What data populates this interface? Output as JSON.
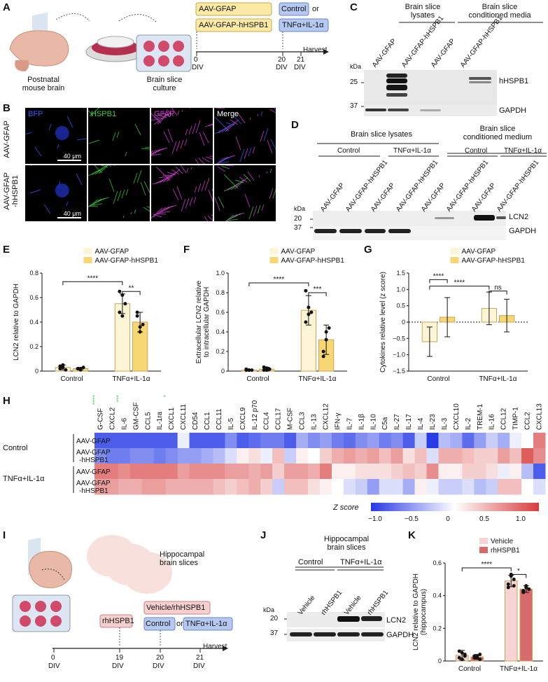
{
  "panels": {
    "A": {
      "letter": "A",
      "postnatal": "Postnatal\nmouse brain",
      "culture": "Brain slice\nculture",
      "aav1": "AAV-GFAP",
      "aav2": "AAV-GFAP-hHSPB1",
      "control": "Control",
      "or": "or",
      "tnf": "TNFα+IL-1α",
      "day0": "0",
      "day20": "20",
      "day21": "21",
      "div": "DIV",
      "harvest": "Harvest"
    },
    "B": {
      "letter": "B",
      "channels": [
        "BFP",
        "HSPB1",
        "GFAP",
        "Merge"
      ],
      "rows": [
        "AAV-GFAP",
        "AAV-GFAP\n-hHSPB1"
      ],
      "scale": "40 μm",
      "channel_colors": [
        "#3b5bff",
        "#3dd13d",
        "#e040e0",
        "#ffffff"
      ]
    },
    "C": {
      "letter": "C",
      "group1": "Brain slice\nlysates",
      "group2": "Brain slice\nconditioned media",
      "lanes": [
        "AAV-GFAP",
        "AAV-GFAP-hHSPB1",
        "AAV-GFAP",
        "AAV-GFAP-hHSPB1"
      ],
      "kda": "kDa",
      "marker25": "25",
      "marker37": "37",
      "band1": "hHSPB1",
      "band2": "GAPDH"
    },
    "D": {
      "letter": "D",
      "group1": "Brain slice lysates",
      "group2": "Brain slice\nconditioned medium",
      "control": "Control",
      "tnf": "TNFα+IL-1α",
      "lanes": [
        "AAV-GFAP",
        "AAV-GFAP-hHSPB1",
        "AAV-GFAP",
        "AAV-GFAP-hHSPB1",
        "AAV-GFAP",
        "AAV-GFAP-hHSPB1",
        "AAV-GFAP",
        "AAV-GFAP-hHSPB1"
      ],
      "kda": "kDa",
      "marker20": "20",
      "marker37": "37",
      "band1": "LCN2",
      "band2": "GAPDH"
    },
    "H": {
      "letter": "H",
      "rows": [
        "AAV-GFAP",
        "AAV-GFAP\n-hHSPB1",
        "AAV-GFAP",
        "AAV-GFAP\n-hHSPB1"
      ],
      "groups": [
        "Control",
        "TNFα+IL-1α"
      ],
      "stars": [
        "****",
        "",
        "***",
        "",
        "",
        "",
        "*"
      ],
      "colorbar_title": "Z score",
      "colorbar_ticks": [
        "−1.0",
        "−0.5",
        "0",
        "0.5",
        "1.0"
      ]
    },
    "I": {
      "letter": "I",
      "hippo": "Hippocampal\nbrain slices",
      "rh": "rhHSPB1",
      "vehrh": "Vehicle/rhHSPB1",
      "control": "Control",
      "or": "or",
      "tnf": "TNFα+IL-1α",
      "days": [
        "0",
        "19",
        "20",
        "21"
      ],
      "div": "DIV",
      "harvest": "Harvest"
    },
    "J": {
      "letter": "J",
      "title": "Hippocampal\nbrain slices",
      "control": "Control",
      "tnf": "TNFα+IL-1α",
      "lanes": [
        "Vehicle",
        "rhHSPB1",
        "Vehicle",
        "rhHSPB1"
      ],
      "kda": "kDa",
      "marker20": "20",
      "marker37": "37",
      "band1": "LCN2",
      "band2": "GAPDH"
    }
  },
  "chart_data": [
    {
      "id": "E",
      "type": "bar",
      "letter": "E",
      "ylabel": "LCN2 relative to GAPDH",
      "ylim": [
        0,
        0.8
      ],
      "yticks": [
        0,
        0.2,
        0.4,
        0.6,
        0.8
      ],
      "categories": [
        "Control",
        "TNFα+IL-1α"
      ],
      "series": [
        {
          "name": "AAV-GFAP",
          "values": [
            0.03,
            0.55
          ],
          "err": [
            0.02,
            0.08
          ],
          "color": "#fdf5d6",
          "points": [
            [
              0.02,
              0.05,
              0.01,
              0.04,
              0.03
            ],
            [
              0.48,
              0.62,
              0.55,
              0.65,
              0.45
            ]
          ]
        },
        {
          "name": "AAV-GFAP-hHSPB1",
          "values": [
            0.02,
            0.4
          ],
          "err": [
            0.01,
            0.08
          ],
          "color": "#f7d774",
          "points": [
            [
              0.02,
              0.01,
              0.03,
              0.02,
              0.02
            ],
            [
              0.45,
              0.32,
              0.38,
              0.48,
              0.36
            ]
          ]
        }
      ],
      "sig": [
        {
          "label": "****",
          "from": [
            0,
            0
          ],
          "to": [
            1,
            0
          ],
          "y": 0.73
        },
        {
          "label": "**",
          "from": [
            1,
            0
          ],
          "to": [
            1,
            1
          ],
          "y": 0.65
        }
      ]
    },
    {
      "id": "F",
      "type": "bar",
      "letter": "F",
      "ylabel": "Extracellular LCN2 relative\nto intracellular GAPDH",
      "ylim": [
        0,
        1.0
      ],
      "yticks": [
        0,
        0.2,
        0.4,
        0.6,
        0.8,
        1.0
      ],
      "categories": [
        "Control",
        "TNFα+IL-1α"
      ],
      "series": [
        {
          "name": "AAV-GFAP",
          "values": [
            0.01,
            0.62
          ],
          "err": [
            0.005,
            0.15
          ],
          "color": "#fdf5d6",
          "points": [
            [
              0.01,
              0.01,
              0.01,
              0.02,
              0.01
            ],
            [
              0.5,
              0.65,
              0.6,
              0.82,
              0.58
            ]
          ]
        },
        {
          "name": "AAV-GFAP-hHSPB1",
          "values": [
            0.02,
            0.32
          ],
          "err": [
            0.02,
            0.15
          ],
          "color": "#f7d774",
          "points": [
            [
              0.01,
              0.03,
              0.02,
              0.04,
              0.01
            ],
            [
              0.2,
              0.32,
              0.44,
              0.15,
              0.4
            ]
          ]
        }
      ],
      "sig": [
        {
          "label": "****",
          "from": [
            0,
            0
          ],
          "to": [
            1,
            0
          ],
          "y": 0.9
        },
        {
          "label": "***",
          "from": [
            1,
            0
          ],
          "to": [
            1,
            1
          ],
          "y": 0.8
        }
      ]
    },
    {
      "id": "G",
      "type": "bar",
      "letter": "G",
      "ylabel": "Cytokines relative level (z score)",
      "ylim": [
        -1.5,
        1.5
      ],
      "yticks": [
        -1.5,
        -1.0,
        -0.5,
        0,
        0.5,
        1.0,
        1.5
      ],
      "categories": [
        "Control",
        "TNFα+IL-1α"
      ],
      "series": [
        {
          "name": "AAV-GFAP",
          "values": [
            -0.6,
            0.42
          ],
          "err": [
            0.45,
            0.5
          ],
          "color": "#fdf5d6"
        },
        {
          "name": "AAV-GFAP-hHSPB1",
          "values": [
            0.15,
            0.2
          ],
          "err": [
            0.6,
            0.5
          ],
          "color": "#f7d774"
        }
      ],
      "sig": [
        {
          "label": "****",
          "from": [
            0,
            0
          ],
          "to": [
            0,
            1
          ],
          "y": 1.3
        },
        {
          "label": "****",
          "from": [
            0,
            0
          ],
          "to": [
            1,
            0
          ],
          "y": 1.1
        },
        {
          "label": "ns",
          "from": [
            1,
            0
          ],
          "to": [
            1,
            1
          ],
          "y": 0.95
        }
      ],
      "dashed_zero": true
    },
    {
      "id": "H",
      "type": "heatmap",
      "columns": [
        "G-CSF",
        "CXCL2",
        "IL-6",
        "GM-CSF",
        "CCL5",
        "IL-1ra",
        "CXCL1",
        "CXCL11",
        "CD54",
        "CCL1",
        "CCL11",
        "IL-5",
        "CXCL9",
        "IL-12 p70",
        "CCL4",
        "CCL17",
        "M-CSF",
        "CCL3",
        "IL-13",
        "CXCL12",
        "IFN-γ",
        "IL-7",
        "IL-1β",
        "IL-10",
        "C5a",
        "IL-27",
        "IL-17",
        "IL-4",
        "IL-23",
        "IL-3",
        "CXCL10",
        "IL-2",
        "TREM-1",
        "IL-16",
        "CCL12",
        "TIMP-1",
        "CCL2",
        "CXCL13"
      ],
      "values": [
        [
          -1.0,
          -1.0,
          -1.0,
          -1.0,
          -1.0,
          -1.0,
          -1.0,
          -0.1,
          -1.0,
          -1.0,
          -1.0,
          -0.7,
          -1.0,
          -0.9,
          -0.8,
          -0.8,
          -1.0,
          -0.5,
          -0.7,
          -0.6,
          -0.8,
          -0.9,
          -0.7,
          -0.6,
          -0.8,
          -0.7,
          -1.0,
          -0.3,
          -1.2,
          -0.4,
          -0.5,
          -0.9,
          -0.6,
          -0.3,
          -0.5,
          -0.1,
          0.0,
          0.8
        ],
        [
          -0.7,
          -0.8,
          -0.8,
          -0.7,
          -0.7,
          -0.8,
          -0.7,
          -0.6,
          -0.6,
          -0.5,
          -0.4,
          -0.2,
          0.1,
          0.2,
          -0.1,
          0.4,
          -0.3,
          0.1,
          0.0,
          0.3,
          0.5,
          0.6,
          0.5,
          0.6,
          0.4,
          0.6,
          0.2,
          0.4,
          -0.2,
          0.5,
          0.5,
          0.4,
          0.3,
          0.3,
          0.6,
          0.4,
          1.0,
          0.7
        ],
        [
          0.8,
          0.8,
          0.7,
          0.8,
          0.8,
          0.8,
          0.8,
          0.6,
          0.7,
          0.7,
          0.7,
          0.6,
          0.6,
          0.5,
          0.6,
          0.3,
          0.6,
          0.6,
          0.5,
          0.8,
          0.1,
          0.1,
          0.2,
          0.2,
          0.2,
          0.3,
          0.4,
          0.3,
          0.7,
          0.1,
          0.1,
          0.3,
          0.3,
          0.2,
          -0.1,
          0.1,
          -0.4,
          -1.0
        ],
        [
          0.6,
          0.6,
          0.5,
          0.5,
          0.6,
          0.6,
          0.5,
          0.5,
          0.5,
          0.5,
          0.4,
          0.3,
          0.4,
          0.5,
          0.3,
          -0.3,
          0.4,
          0.4,
          0.2,
          0.1,
          0.0,
          -0.2,
          -0.3,
          -0.6,
          -0.2,
          -0.2,
          -0.5,
          0.1,
          -0.1,
          -0.3,
          -0.3,
          -0.2,
          -0.4,
          -0.3,
          0.4,
          0.4,
          0.0,
          -0.2
        ]
      ]
    },
    {
      "id": "K",
      "type": "bar",
      "letter": "K",
      "ylabel": "LCN2 relative to GAPDH\n(hippocampus)",
      "ylim": [
        0,
        0.6
      ],
      "yticks": [
        0,
        0.2,
        0.4,
        0.6
      ],
      "categories": [
        "Control",
        "TNFα+IL-1α"
      ],
      "series": [
        {
          "name": "Vehicle",
          "values": [
            0.035,
            0.49
          ],
          "err": [
            0.03,
            0.035
          ],
          "color": "#f6d4d4",
          "points": [
            [
              0.02,
              0.05,
              0.03,
              0.06,
              0.01,
              0.04
            ],
            [
              0.45,
              0.52,
              0.5,
              0.47,
              0.53,
              0.46
            ]
          ]
        },
        {
          "name": "rhHSPB1",
          "values": [
            0.025,
            0.44
          ],
          "err": [
            0.015,
            0.02
          ],
          "color": "#d76b6b",
          "points": [
            [
              0.02,
              0.03,
              0.01,
              0.03,
              0.02,
              0.04
            ],
            [
              0.42,
              0.45,
              0.44,
              0.43,
              0.46,
              0.44
            ]
          ]
        }
      ],
      "sig": [
        {
          "label": "****",
          "from": [
            0,
            0
          ],
          "to": [
            1,
            0
          ],
          "y": 0.57
        },
        {
          "label": "*",
          "from": [
            1,
            0
          ],
          "to": [
            1,
            1
          ],
          "y": 0.53
        }
      ]
    }
  ]
}
